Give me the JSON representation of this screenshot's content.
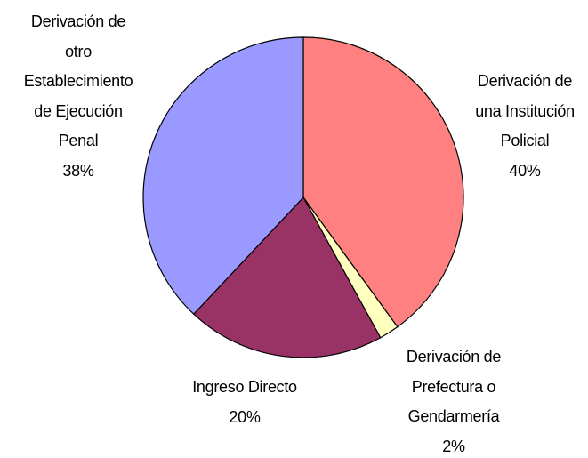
{
  "chart_data": {
    "type": "pie",
    "categories": [
      "Derivación de\nuna Institución\nPolicial",
      "Derivación de\nPrefectura o\nGendarmería",
      "Ingreso Directo",
      "Derivación de\notro\nEstablecimiento\nde Ejecución\nPenal"
    ],
    "values": [
      40,
      2,
      20,
      38
    ],
    "value_labels": [
      "40%",
      "2%",
      "20%",
      "38%"
    ],
    "colors": [
      "#ff8080",
      "#ffffc0",
      "#993366",
      "#9999ff"
    ]
  }
}
